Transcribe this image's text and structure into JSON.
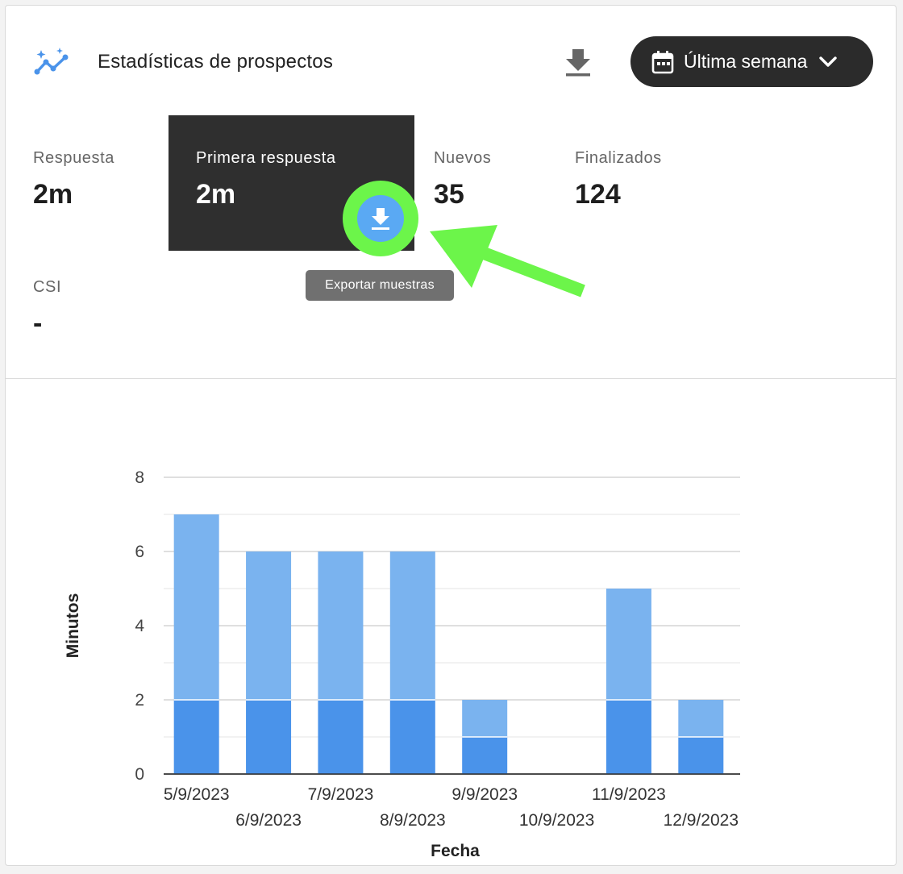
{
  "header": {
    "title": "Estadísticas de prospectos",
    "range_label": "Última semana",
    "icons": {
      "logo": "trend-sparkle-icon",
      "download": "download-icon",
      "calendar": "calendar-icon",
      "chevron": "chevron-down-icon"
    }
  },
  "metrics": [
    {
      "label": "Respuesta",
      "value": "2m"
    },
    {
      "label": "Primera respuesta",
      "value": "2m"
    },
    {
      "label": "Nuevos",
      "value": "35"
    },
    {
      "label": "Finalizados",
      "value": "124"
    },
    {
      "label": "CSI",
      "value": "-"
    }
  ],
  "export": {
    "tooltip": "Exportar muestras",
    "icon": "download-icon",
    "highlight_color": "#6cf54a"
  },
  "colors": {
    "series_dark": "#4a93ea",
    "series_light": "#7ab3ef",
    "active_card": "#2f2f2f"
  },
  "chart_data": {
    "type": "bar",
    "stacked": true,
    "categories": [
      "5/9/2023",
      "6/9/2023",
      "7/9/2023",
      "8/9/2023",
      "9/9/2023",
      "10/9/2023",
      "11/9/2023",
      "12/9/2023"
    ],
    "series": [
      {
        "values": [
          2,
          2,
          2,
          2,
          1,
          0,
          2,
          1
        ]
      },
      {
        "values": [
          5,
          4,
          4,
          4,
          1,
          0,
          3,
          1
        ]
      }
    ],
    "xlabel": "Fecha",
    "ylabel": "Minutos",
    "ylim": [
      0,
      8
    ],
    "yticks": [
      0,
      2,
      4,
      6,
      8
    ],
    "grid": true
  }
}
